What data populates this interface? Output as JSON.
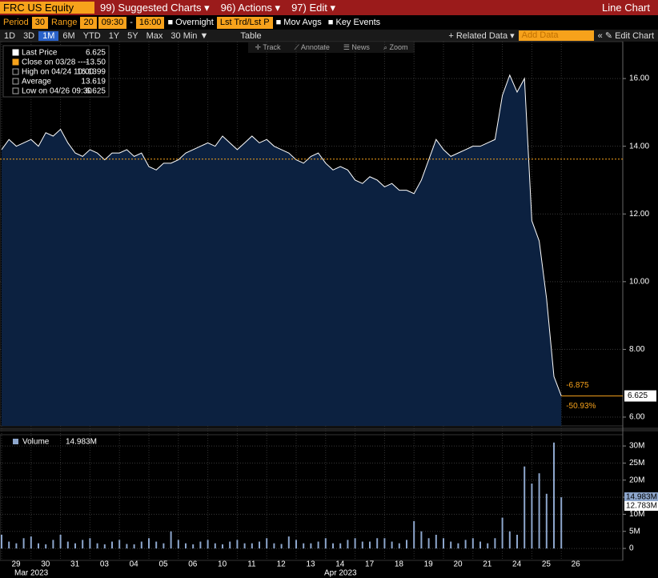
{
  "toolbar": {
    "ticker": "FRC US Equity",
    "menus": [
      "99) Suggested Charts ▾",
      "96) Actions ▾",
      "97) Edit ▾"
    ],
    "chart_kind": "Line Chart"
  },
  "settings": {
    "period_label": "Period",
    "period": "30",
    "range_label": "Range",
    "range": "20",
    "start": "09:30",
    "dash": "-",
    "end": "16:00",
    "overnight": "■ Overnight",
    "lst": "Lst Trd/Lst P",
    "mov_avgs": "■ Mov Avgs",
    "key_events": "■ Key Events"
  },
  "ranges": [
    "1D",
    "3D",
    "1M",
    "6M",
    "YTD",
    "1Y",
    "5Y",
    "Max",
    "30 Min ▼",
    "Table",
    "+ Related Data ▾",
    "Add Data",
    "« ✎ Edit Chart"
  ],
  "tools": [
    "✛ Track",
    "⟋ Annotate",
    "☰ News",
    "⌕ Zoom"
  ],
  "legend": [
    [
      "Last Price",
      "6.625"
    ],
    [
      "Close on 03/28 ----",
      "13.50"
    ],
    [
      "High on 04/24 10:00",
      "16.1399"
    ],
    [
      "Average",
      "13.619"
    ],
    [
      "Low on 04/26 09:30",
      "6.625"
    ]
  ],
  "chart_data": [
    {
      "type": "area",
      "color": "#ffffff",
      "fill": "#0c2140",
      "categories": [
        "29",
        null,
        null,
        null,
        "30",
        null,
        null,
        null,
        "31",
        null,
        null,
        null,
        "03",
        null,
        null,
        null,
        "04",
        null,
        null,
        null,
        "05",
        null,
        null,
        null,
        "06",
        null,
        null,
        null,
        "10",
        null,
        null,
        null,
        "11",
        null,
        null,
        null,
        "12",
        null,
        null,
        null,
        "13",
        null,
        null,
        null,
        "14",
        null,
        null,
        null,
        "17",
        null,
        null,
        null,
        "18",
        null,
        null,
        null,
        "19",
        null,
        null,
        null,
        "20",
        null,
        null,
        null,
        "21",
        null,
        null,
        null,
        "24",
        null,
        null,
        null,
        "25",
        null,
        null,
        null,
        "26"
      ],
      "values": [
        13.9,
        14.2,
        14.0,
        14.1,
        14.2,
        14.0,
        14.4,
        14.3,
        14.5,
        14.1,
        13.8,
        13.7,
        13.9,
        13.8,
        13.6,
        13.8,
        13.8,
        13.9,
        13.7,
        13.8,
        13.4,
        13.3,
        13.5,
        13.5,
        13.6,
        13.8,
        13.9,
        14.0,
        14.1,
        14.0,
        14.3,
        14.1,
        13.9,
        14.1,
        14.3,
        14.1,
        14.2,
        14.0,
        13.9,
        13.8,
        13.6,
        13.5,
        13.7,
        13.8,
        13.5,
        13.3,
        13.4,
        13.3,
        13.0,
        12.9,
        13.1,
        13.0,
        12.8,
        12.9,
        12.7,
        12.7,
        12.6,
        13.0,
        13.6,
        14.2,
        13.9,
        13.7,
        13.8,
        13.9,
        14.0,
        14.0,
        14.1,
        14.2,
        15.5,
        16.1,
        15.6,
        16.0,
        11.8,
        11.2,
        9.5,
        7.2,
        6.625
      ],
      "ylim": [
        5.74,
        17.09
      ],
      "yticks": [
        {
          "value": 6,
          "label": "6.00"
        },
        {
          "value": 8,
          "label": "8.00"
        },
        {
          "value": 10,
          "label": "10.00"
        },
        {
          "value": 12,
          "label": "12.00"
        },
        {
          "value": 14,
          "label": "14.00"
        },
        {
          "value": 16,
          "label": "16.00"
        }
      ],
      "reference": {
        "value": 13.619,
        "color": "#f7a21b"
      },
      "last": {
        "value": 6.625,
        "label": "6.625"
      },
      "change": {
        "value": -6.875,
        "label": "-6.875"
      },
      "change_pct": {
        "value": -50.93,
        "label": "-50.93%"
      }
    },
    {
      "type": "bar",
      "color": "#8da6cc",
      "name": "Volume",
      "legend_value": "14.983M",
      "avg_label": "12.783M",
      "values": [
        4,
        2,
        1.5,
        3,
        3.5,
        1.5,
        1.2,
        2.5,
        4,
        2,
        1.5,
        2.5,
        3,
        1.5,
        1.2,
        2,
        2.5,
        1.3,
        1.2,
        2,
        3,
        2,
        1.5,
        5,
        2.5,
        1.5,
        1.2,
        2,
        2.5,
        1.5,
        1.2,
        2,
        2.5,
        1.5,
        1.5,
        2,
        3,
        1.5,
        1.3,
        3.5,
        2.5,
        1.5,
        1.5,
        2,
        3,
        1.5,
        1.5,
        2.5,
        3,
        2,
        2,
        3,
        3,
        2,
        1.5,
        2.5,
        8,
        5,
        3,
        4,
        3,
        2,
        1.5,
        2.5,
        3,
        2,
        1.5,
        3,
        9,
        5,
        4,
        24,
        19,
        22,
        16,
        31,
        14.983
      ],
      "ylim": [
        -3.5,
        33.3
      ],
      "yticks": [
        {
          "value": 0,
          "label": "0"
        },
        {
          "value": 5,
          "label": "5M"
        },
        {
          "value": 10,
          "label": "10M"
        },
        {
          "value": 15,
          "label": "15M"
        },
        {
          "value": 20,
          "label": "20M"
        },
        {
          "value": 25,
          "label": "25M"
        },
        {
          "value": 30,
          "label": "30M"
        }
      ],
      "month_labels": [
        "Mar 2023",
        "Apr 2023"
      ]
    }
  ]
}
